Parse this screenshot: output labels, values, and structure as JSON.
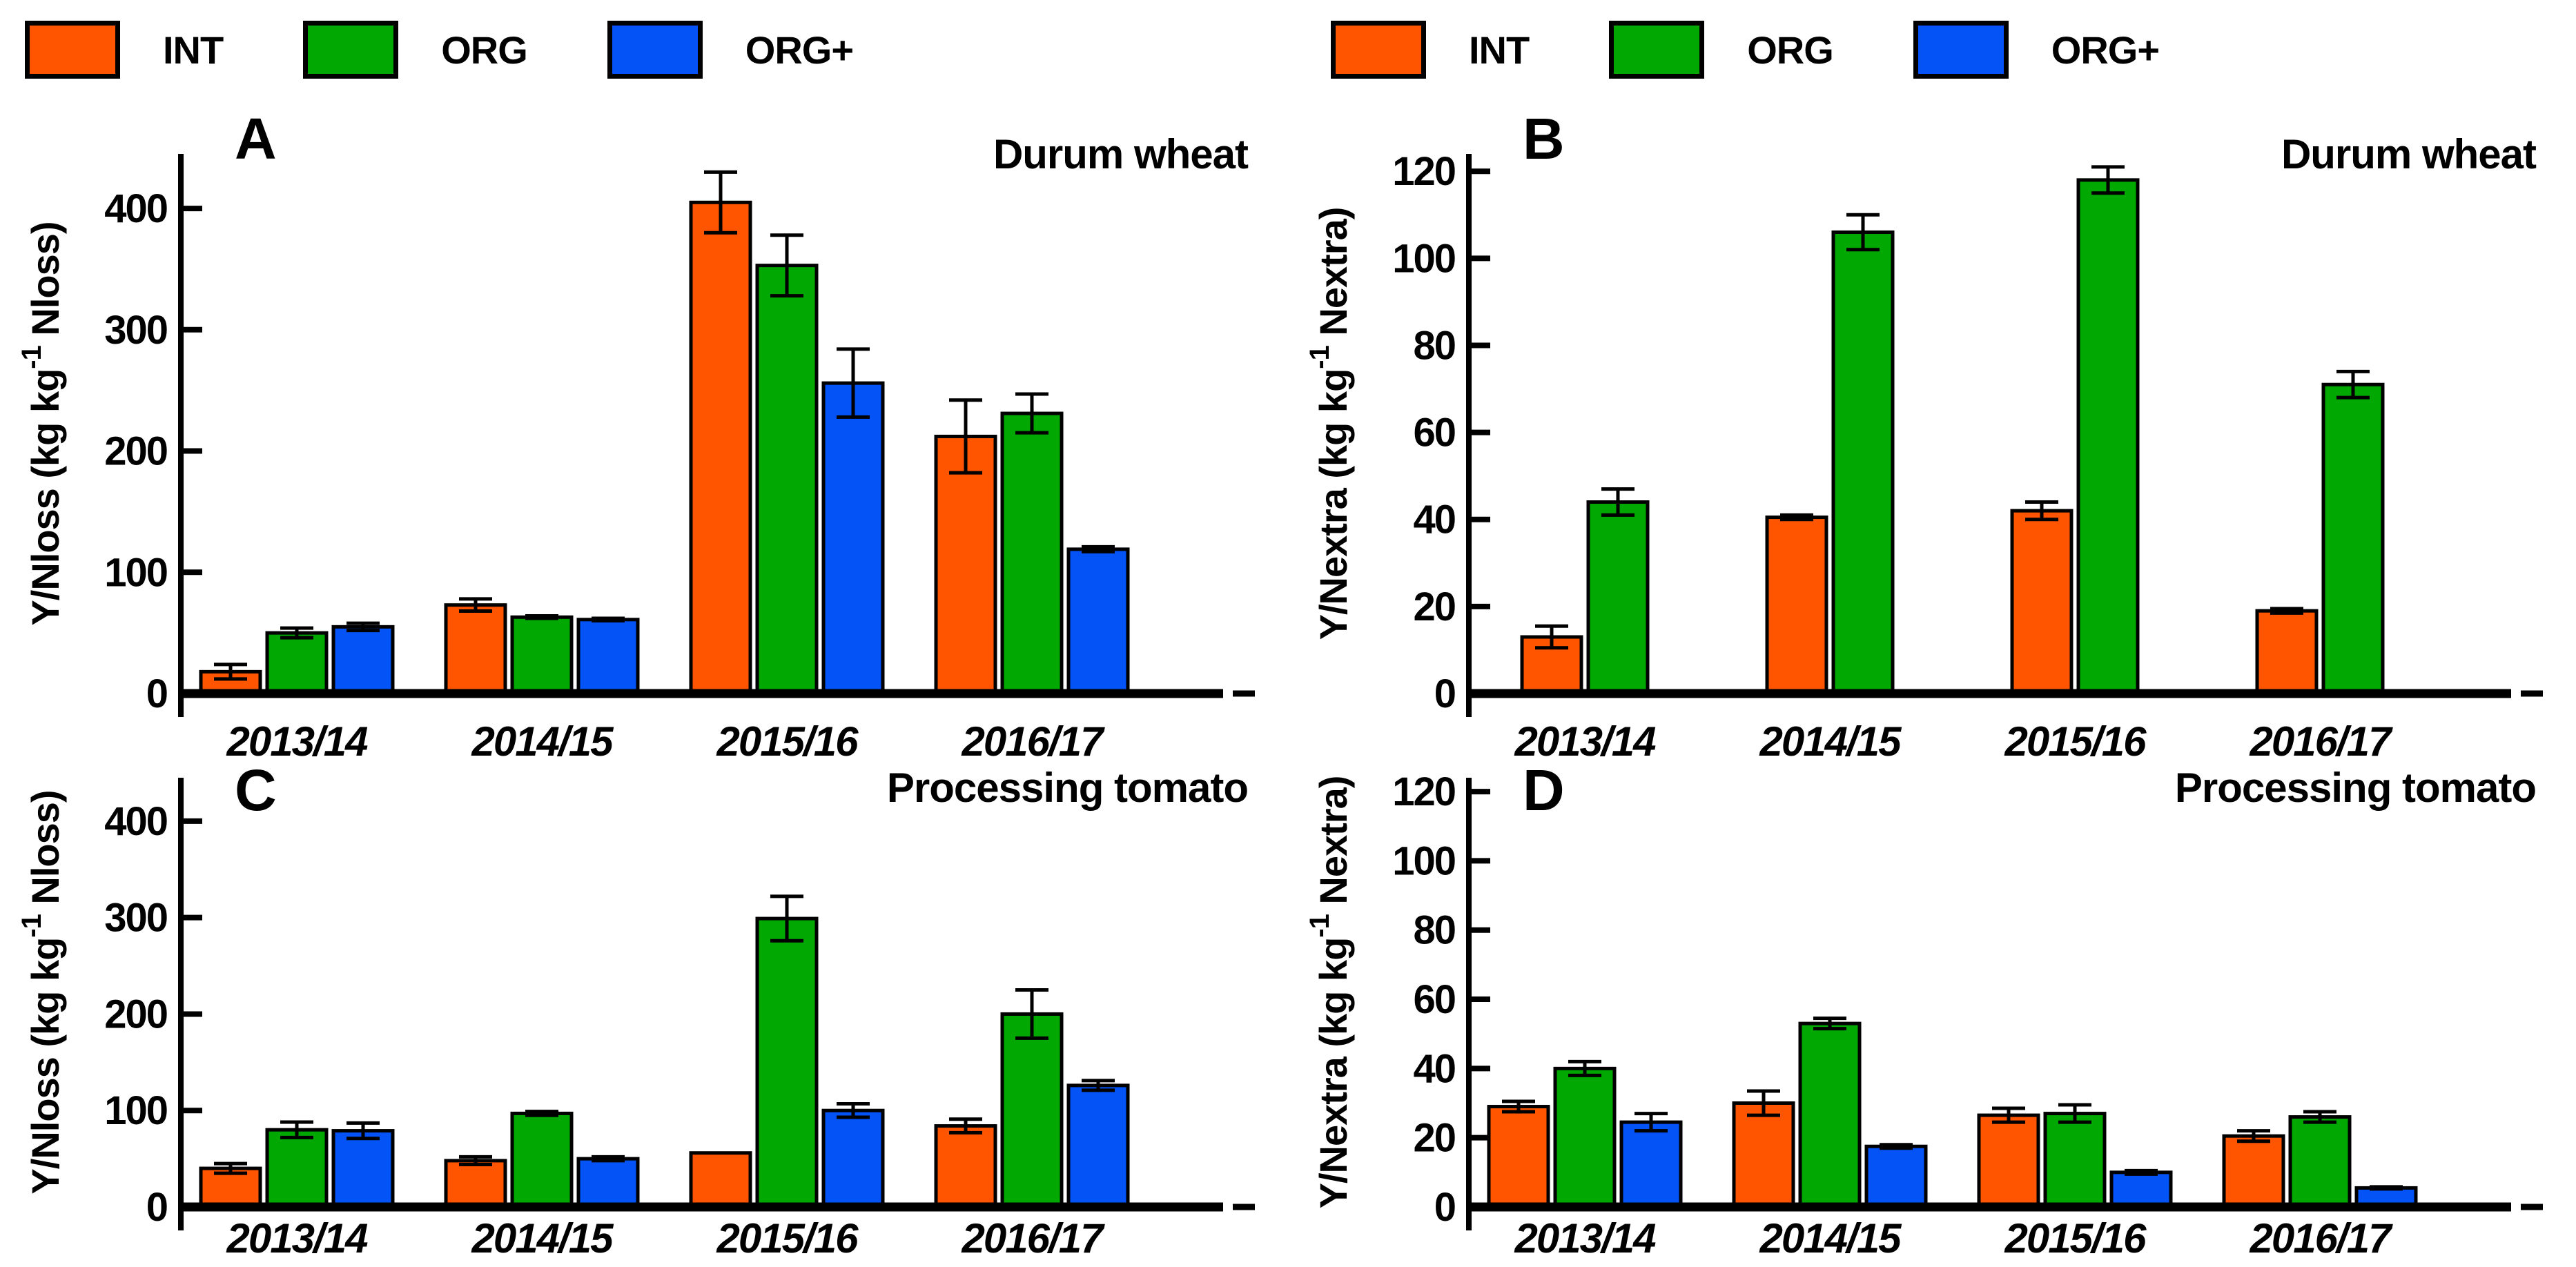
{
  "figure": {
    "background": "#ffffff"
  },
  "colors": {
    "axis": "#000000",
    "text": "#000000",
    "series": {
      "INT": "#FF5500",
      "ORG": "#02A802",
      "ORG+": "#0453F7"
    }
  },
  "legend": {
    "items": [
      {
        "label": "INT",
        "series": "INT"
      },
      {
        "label": "ORG",
        "series": "ORG"
      },
      {
        "label": "ORG+",
        "series": "ORG+"
      }
    ]
  },
  "chart_data": [
    {
      "type": "bar",
      "panel": "A",
      "title": "Durum wheat",
      "ylabel": {
        "pre": "Y/Nloss (kg kg",
        "sup": "-1",
        "post": " Nloss)"
      },
      "categories": [
        "2013/14",
        "2014/15",
        "2015/16",
        "2016/17"
      ],
      "ylim": [
        0,
        445
      ],
      "yticks": [
        0,
        100,
        200,
        300,
        400
      ],
      "grid": false,
      "legend_position": "top",
      "series": [
        {
          "name": "INT",
          "values": [
            18,
            73,
            405,
            212
          ],
          "errors": [
            6,
            5,
            25,
            30
          ]
        },
        {
          "name": "ORG",
          "values": [
            50,
            63,
            353,
            231
          ],
          "errors": [
            4,
            1,
            25,
            16
          ]
        },
        {
          "name": "ORG+",
          "values": [
            55,
            61,
            256,
            119
          ],
          "errors": [
            3,
            1,
            28,
            2
          ]
        }
      ]
    },
    {
      "type": "bar",
      "panel": "B",
      "title": "Durum wheat",
      "ylabel": {
        "pre": "Y/Nextra (kg kg",
        "sup": "-1",
        "post": " Nextra)"
      },
      "categories": [
        "2013/14",
        "2014/15",
        "2015/16",
        "2016/17"
      ],
      "ylim": [
        0,
        124
      ],
      "yticks": [
        0,
        20,
        40,
        60,
        80,
        100,
        120
      ],
      "grid": false,
      "legend_position": "top",
      "series": [
        {
          "name": "INT",
          "values": [
            13,
            40.5,
            42,
            19
          ],
          "errors": [
            2.5,
            0.5,
            2,
            0.5
          ]
        },
        {
          "name": "ORG",
          "values": [
            44,
            106,
            118,
            71
          ],
          "errors": [
            3,
            4,
            3,
            3
          ]
        }
      ]
    },
    {
      "type": "bar",
      "panel": "C",
      "title": "Processing tomato",
      "ylabel": {
        "pre": "Y/Nloss (kg kg",
        "sup": "-1",
        "post": " Nloss)"
      },
      "categories": [
        "2013/14",
        "2014/15",
        "2015/16",
        "2016/17"
      ],
      "ylim": [
        0,
        445
      ],
      "yticks": [
        0,
        100,
        200,
        300,
        400
      ],
      "grid": false,
      "legend_position": "top",
      "series": [
        {
          "name": "INT",
          "values": [
            40,
            48,
            56,
            84
          ],
          "errors": [
            5,
            4,
            0,
            7
          ]
        },
        {
          "name": "ORG",
          "values": [
            80,
            97,
            299,
            200
          ],
          "errors": [
            8,
            2,
            23,
            25
          ]
        },
        {
          "name": "ORG+",
          "values": [
            79,
            50,
            100,
            126
          ],
          "errors": [
            8,
            2,
            7,
            5
          ]
        }
      ]
    },
    {
      "type": "bar",
      "panel": "D",
      "title": "Processing tomato",
      "ylabel": {
        "pre": "Y/Nextra (kg kg",
        "sup": "-1",
        "post": " Nextra)"
      },
      "categories": [
        "2013/14",
        "2014/15",
        "2015/16",
        "2016/17"
      ],
      "ylim": [
        0,
        124
      ],
      "yticks": [
        0,
        20,
        40,
        60,
        80,
        100,
        120
      ],
      "grid": false,
      "legend_position": "top",
      "series": [
        {
          "name": "INT",
          "values": [
            29,
            30,
            26.5,
            20.5
          ],
          "errors": [
            1.5,
            3.5,
            2,
            1.5
          ]
        },
        {
          "name": "ORG",
          "values": [
            40,
            53,
            27,
            26
          ],
          "errors": [
            2,
            1.5,
            2.5,
            1.5
          ]
        },
        {
          "name": "ORG+",
          "values": [
            24.5,
            17.5,
            10,
            5.5
          ],
          "errors": [
            2.5,
            0.5,
            0.5,
            0.3
          ]
        }
      ]
    }
  ]
}
